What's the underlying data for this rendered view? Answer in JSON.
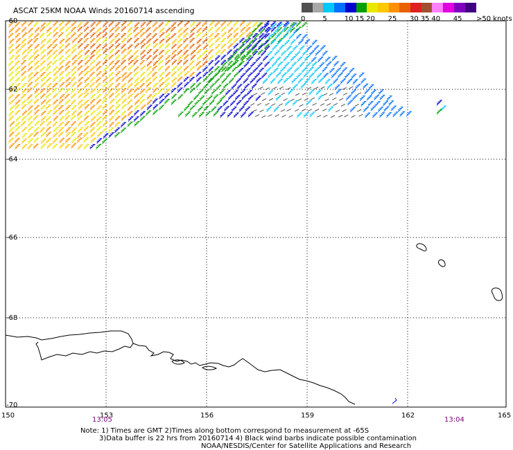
{
  "title": "ASCAT 25KM NOAA Winds 20160714 ascending",
  "legend": {
    "bins": [
      {
        "label": "0",
        "color": "#505050"
      },
      {
        "label": "",
        "color": "#a8a8a8"
      },
      {
        "label": "5",
        "color": "#00c8ff"
      },
      {
        "label": "",
        "color": "#0070ff"
      },
      {
        "label": "10",
        "color": "#0000d0"
      },
      {
        "label": "15",
        "color": "#00a000"
      },
      {
        "label": "20",
        "color": "#e8e800"
      },
      {
        "label": "",
        "color": "#ffc800"
      },
      {
        "label": "25",
        "color": "#ff9000"
      },
      {
        "label": "",
        "color": "#e86000"
      },
      {
        "label": "30",
        "color": "#e02020"
      },
      {
        "label": "35",
        "color": "#a05030"
      },
      {
        "label": "40",
        "color": "#ff80ff"
      },
      {
        "label": "",
        "color": "#e000e0"
      },
      {
        "label": "45",
        "color": "#8000c0"
      },
      {
        "label": "",
        "color": "#400080"
      }
    ],
    "units": ">50 knots"
  },
  "axes": {
    "lat_labels": [
      "-60",
      "-62",
      "-64",
      "-66",
      "-68",
      "-70"
    ],
    "lon_labels": [
      "150",
      "153",
      "156",
      "159",
      "162",
      "165"
    ]
  },
  "times": [
    "13:05",
    "13:04"
  ],
  "notes": {
    "line1": "Note: 1) Times are GMT 2)Times along bottom correspond to measurement at -65S",
    "line2": "3)Data buffer is 22 hrs from 20160714 4) Black wind barbs indicate possible contamination",
    "line3": "NOAA/NESDIS/Center for Satellite Applications and Research"
  }
}
